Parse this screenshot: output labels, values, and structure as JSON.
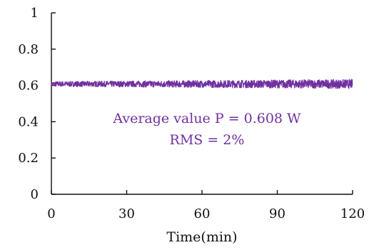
{
  "chart_data": {
    "type": "line",
    "xlabel": "Time(min)",
    "ylabel": "",
    "xlim": [
      0,
      120
    ],
    "ylim": [
      0,
      1
    ],
    "x_ticks": [
      "0",
      "30",
      "60",
      "90",
      "120"
    ],
    "y_ticks": [
      "0",
      "0.2",
      "0.4",
      "0.6",
      "0.8",
      "1"
    ],
    "grid": false,
    "legend": "none",
    "series": [
      {
        "color": "#7030a0",
        "mean": 0.608,
        "rms_fraction": 0.02,
        "x_range": [
          0,
          120
        ]
      }
    ],
    "annotations": [
      "Average value P = 0.608 W",
      "RMS = 2%"
    ],
    "annotation_color": "#7030a0"
  }
}
